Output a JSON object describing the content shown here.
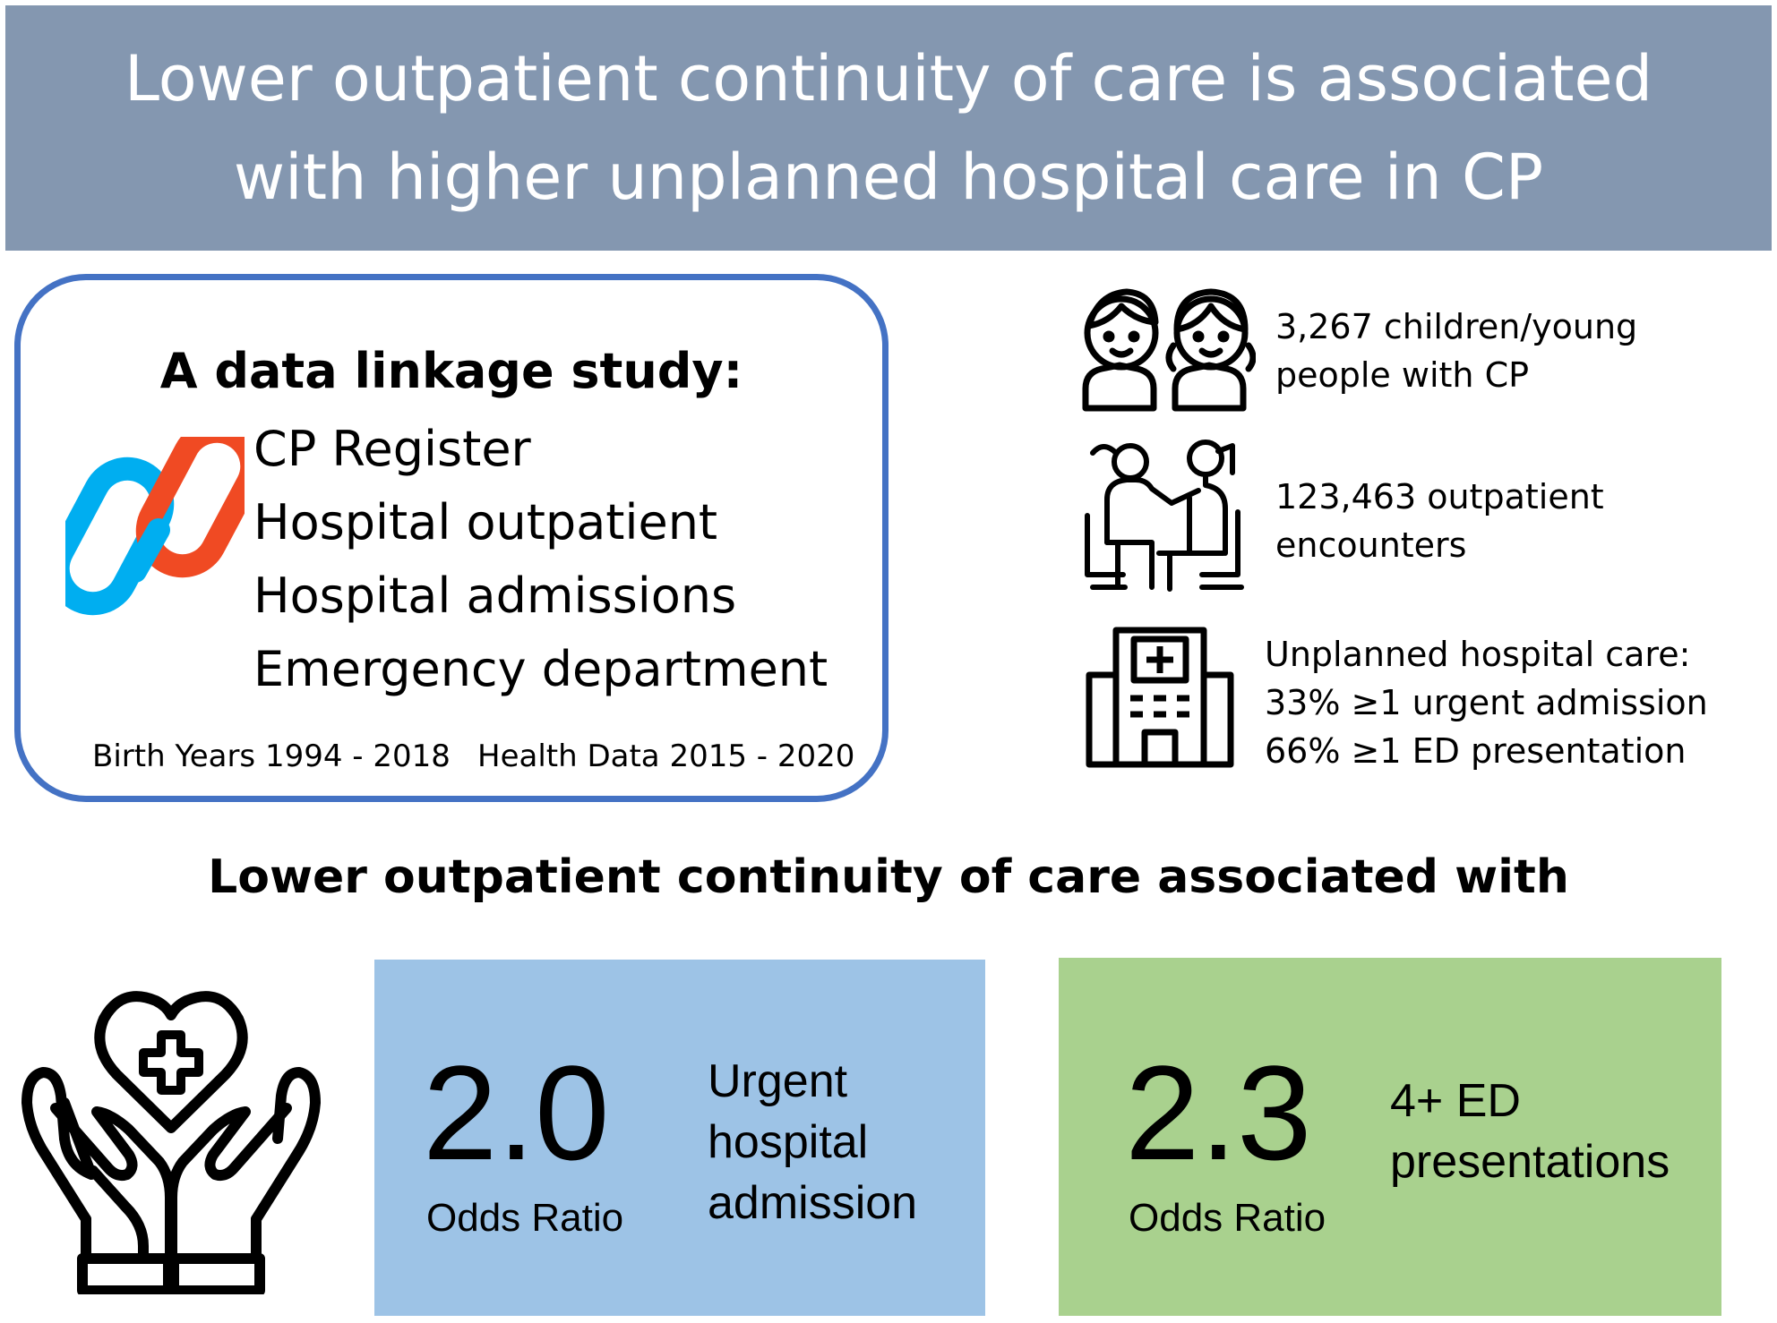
{
  "header": {
    "title_line1": "Lower outpatient continuity of care is associated",
    "title_line2": "with higher unplanned hospital care in CP",
    "background": "#8497b0"
  },
  "study": {
    "title": "A data linkage study:",
    "sources": [
      "CP Register",
      "Hospital outpatient",
      "Hospital admissions",
      "Emergency department"
    ],
    "birth_years": "Birth Years 1994 - 2018",
    "health_data": "Health Data 2015 - 2020",
    "border_color": "#4472c4",
    "icon": "chain-link-icon"
  },
  "stats": [
    {
      "icon": "children-icon",
      "lines": [
        "3,267 children/young",
        "people with CP"
      ]
    },
    {
      "icon": "doctor-patient-icon",
      "lines": [
        "123,463 outpatient",
        "encounters"
      ]
    },
    {
      "icon": "hospital-icon",
      "lines": [
        "Unplanned hospital care:",
        "33% ≥1 urgent admission",
        "66% ≥1 ED presentation"
      ]
    }
  ],
  "section_heading": "Lower outpatient continuity of care associated with",
  "care_icon": "hands-heart-icon",
  "results": [
    {
      "value": "2.0",
      "label": "Odds Ratio",
      "description": [
        "Urgent",
        "hospital",
        "admission"
      ],
      "color": "#9dc3e6"
    },
    {
      "value": "2.3",
      "label": "Odds Ratio",
      "description": [
        "4+ ED",
        "presentations"
      ],
      "color": "#a9d18e"
    }
  ]
}
